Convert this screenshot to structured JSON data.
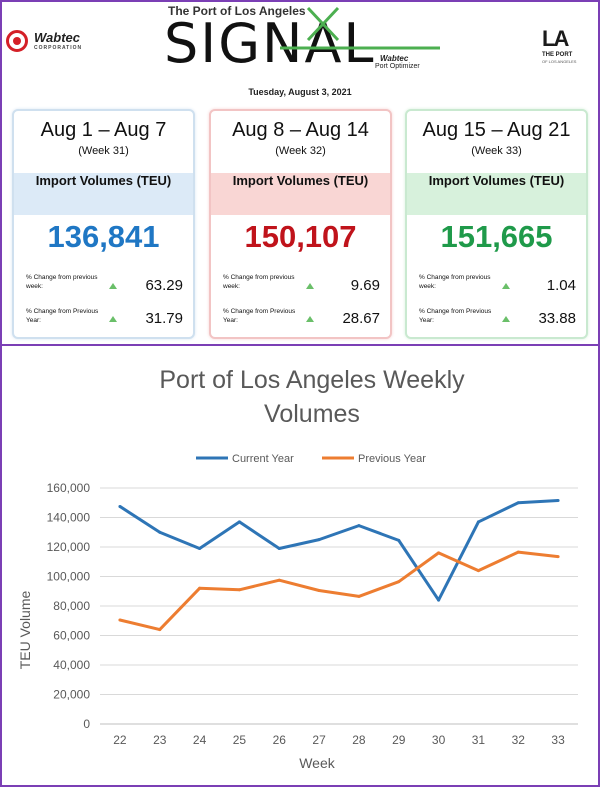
{
  "header": {
    "port_of_la": "The Port of Los Angeles",
    "signal_word": "SIGNAL",
    "wabtec_logo": "Wabtec",
    "wabtec_sub": "CORPORATION",
    "wabtec_small": "Wabtec",
    "port_optimizer": "Port Optimizer",
    "date": "Tuesday, August 3, 2021",
    "la_mark": "LA",
    "la_text": "THE PORT",
    "la_sub": "OF LOS ANGELES"
  },
  "cards": [
    {
      "range": "Aug 1 – Aug 7",
      "week": "(Week 31)",
      "metric": "Import Volumes (TEU)",
      "value": "136,841",
      "value_color": "#1f77c4",
      "change_week_label": "% Change from previous week:",
      "change_week": "63.29",
      "change_year_label": "% Change from Previous Year:",
      "change_year": "31.79"
    },
    {
      "range": "Aug 8 – Aug 14",
      "week": "(Week 32)",
      "metric": "Import Volumes (TEU)",
      "value": "150,107",
      "value_color": "#c0131b",
      "change_week_label": "% Change from previous week:",
      "change_week": "9.69",
      "change_year_label": "% Change from Previous Year:",
      "change_year": "28.67"
    },
    {
      "range": "Aug 15 – Aug 21",
      "week": "(Week 33)",
      "metric": "Import Volumes (TEU)",
      "value": "151,665",
      "value_color": "#1f9a4a",
      "change_week_label": "% Change from previous week:",
      "change_week": "1.04",
      "change_year_label": "% Change from Previous Year:",
      "change_year": "33.88"
    }
  ],
  "chart_data": {
    "type": "line",
    "title": "Port of Los Angeles Weekly Volumes",
    "title_lines": [
      "Port of Los Angeles Weekly",
      "Volumes"
    ],
    "xlabel": "Week",
    "ylabel": "TEU Volume",
    "ylim": [
      0,
      160000
    ],
    "yticks": [
      0,
      20000,
      40000,
      60000,
      80000,
      100000,
      120000,
      140000,
      160000
    ],
    "ytick_labels": [
      "0",
      "20,000",
      "40,000",
      "60,000",
      "80,000",
      "100,000",
      "120,000",
      "140,000",
      "160,000"
    ],
    "x": [
      "22",
      "23",
      "24",
      "25",
      "26",
      "27",
      "28",
      "29",
      "30",
      "31",
      "32",
      "33"
    ],
    "grid": true,
    "legend": "top",
    "series": [
      {
        "name": "Current Year",
        "color": "#2e75b6",
        "values": [
          147500,
          130000,
          119000,
          137000,
          119000,
          125000,
          134500,
          124500,
          84000,
          137000,
          150000,
          151500
        ]
      },
      {
        "name": "Previous Year",
        "color": "#ed7d31",
        "values": [
          70500,
          64000,
          92000,
          91000,
          97500,
          90500,
          86500,
          96500,
          116000,
          104000,
          116500,
          113500
        ]
      }
    ]
  }
}
